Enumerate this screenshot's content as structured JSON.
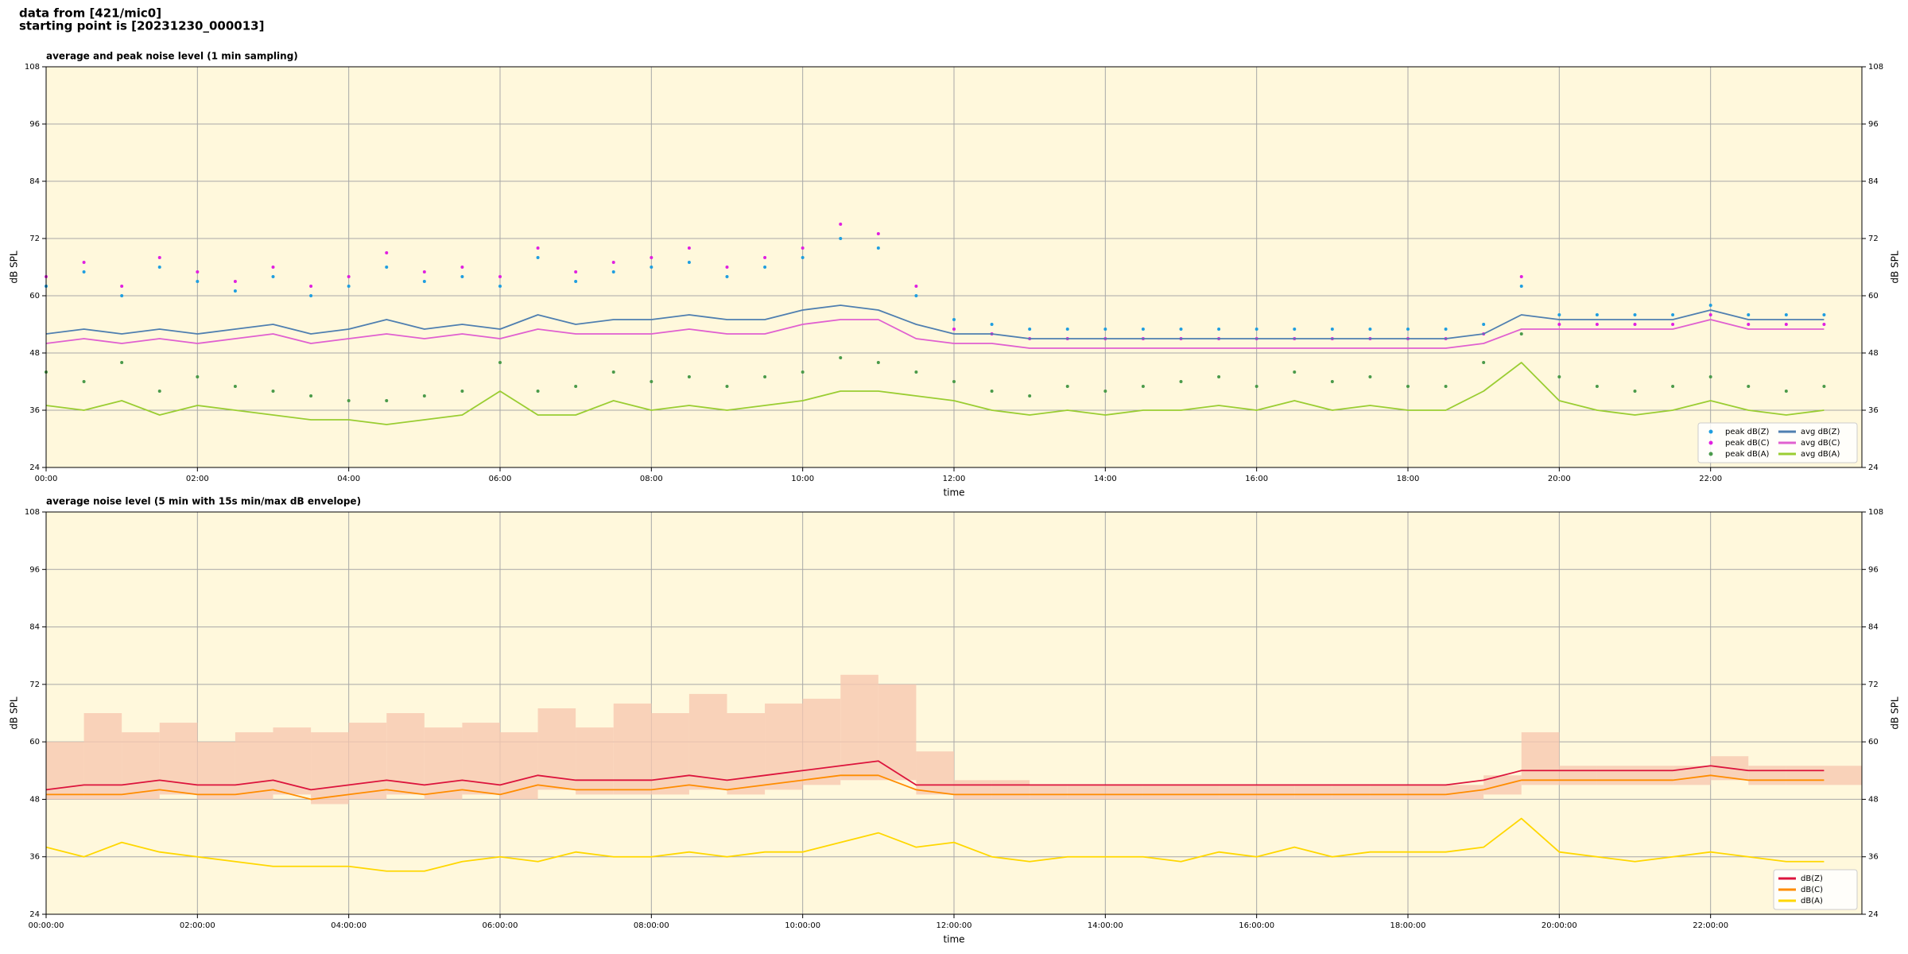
{
  "header": {
    "line1": "data from [421/mic0]",
    "line2": "starting point is [20231230_000013]"
  },
  "chart_data": [
    {
      "type": "line",
      "title": "average and peak noise level (1 min sampling)",
      "xlabel": "time",
      "ylabel": "dB SPL",
      "y2label": "dB SPL",
      "xlim": [
        0,
        24
      ],
      "ylim": [
        24,
        108
      ],
      "grid": true,
      "legend": "lower right",
      "background": "#fff8dc",
      "legend_columns": 2,
      "xticks": [
        {
          "value": 0,
          "label": "00:00"
        },
        {
          "value": 2,
          "label": "02:00"
        },
        {
          "value": 4,
          "label": "04:00"
        },
        {
          "value": 6,
          "label": "06:00"
        },
        {
          "value": 8,
          "label": "08:00"
        },
        {
          "value": 10,
          "label": "10:00"
        },
        {
          "value": 12,
          "label": "12:00"
        },
        {
          "value": 14,
          "label": "14:00"
        },
        {
          "value": 16,
          "label": "16:00"
        },
        {
          "value": 18,
          "label": "18:00"
        },
        {
          "value": 20,
          "label": "20:00"
        },
        {
          "value": 22,
          "label": "22:00"
        }
      ],
      "yticks": [
        24,
        36,
        48,
        60,
        72,
        84,
        96,
        108
      ],
      "x": [
        0,
        0.5,
        1,
        1.5,
        2,
        2.5,
        3,
        3.5,
        4,
        4.5,
        5,
        5.5,
        6,
        6.5,
        7,
        7.5,
        8,
        8.5,
        9,
        9.5,
        10,
        10.5,
        11,
        11.5,
        12,
        12.5,
        13,
        13.5,
        14,
        14.5,
        15,
        15.5,
        16,
        16.5,
        17,
        17.5,
        18,
        18.5,
        19,
        19.5,
        20,
        20.5,
        21,
        21.5,
        22,
        22.5,
        23,
        23.5
      ],
      "series": [
        {
          "name": "peak dB(Z)",
          "kind": "scatter",
          "color": "#1f9ee0",
          "values": [
            62,
            65,
            60,
            66,
            63,
            61,
            64,
            60,
            62,
            66,
            63,
            64,
            62,
            68,
            63,
            65,
            66,
            67,
            64,
            66,
            68,
            72,
            70,
            60,
            55,
            54,
            53,
            53,
            53,
            53,
            53,
            53,
            53,
            53,
            53,
            53,
            53,
            53,
            54,
            62,
            56,
            56,
            56,
            56,
            58,
            56,
            56,
            56
          ]
        },
        {
          "name": "peak dB(C)",
          "kind": "scatter",
          "color": "#e020e0",
          "values": [
            64,
            67,
            62,
            68,
            65,
            63,
            66,
            62,
            64,
            69,
            65,
            66,
            64,
            70,
            65,
            67,
            68,
            70,
            66,
            68,
            70,
            75,
            73,
            62,
            53,
            52,
            51,
            51,
            51,
            51,
            51,
            51,
            51,
            51,
            51,
            51,
            51,
            51,
            52,
            64,
            54,
            54,
            54,
            54,
            56,
            54,
            54,
            54
          ]
        },
        {
          "name": "peak dB(A)",
          "kind": "scatter",
          "color": "#4a9a4a",
          "values": [
            44,
            42,
            46,
            40,
            43,
            41,
            40,
            39,
            38,
            38,
            39,
            40,
            46,
            40,
            41,
            44,
            42,
            43,
            41,
            43,
            44,
            47,
            46,
            44,
            42,
            40,
            39,
            41,
            40,
            41,
            42,
            43,
            41,
            44,
            42,
            43,
            41,
            41,
            46,
            52,
            43,
            41,
            40,
            41,
            43,
            41,
            40,
            41
          ]
        },
        {
          "name": "avg dB(Z)",
          "kind": "line",
          "color": "#4f7fb0",
          "values": [
            52,
            53,
            52,
            53,
            52,
            53,
            54,
            52,
            53,
            55,
            53,
            54,
            53,
            56,
            54,
            55,
            55,
            56,
            55,
            55,
            57,
            58,
            57,
            54,
            52,
            52,
            51,
            51,
            51,
            51,
            51,
            51,
            51,
            51,
            51,
            51,
            51,
            51,
            52,
            56,
            55,
            55,
            55,
            55,
            57,
            55,
            55,
            55
          ]
        },
        {
          "name": "avg dB(C)",
          "kind": "line",
          "color": "#e060d0",
          "values": [
            50,
            51,
            50,
            51,
            50,
            51,
            52,
            50,
            51,
            52,
            51,
            52,
            51,
            53,
            52,
            52,
            52,
            53,
            52,
            52,
            54,
            55,
            55,
            51,
            50,
            50,
            49,
            49,
            49,
            49,
            49,
            49,
            49,
            49,
            49,
            49,
            49,
            49,
            50,
            53,
            53,
            53,
            53,
            53,
            55,
            53,
            53,
            53
          ]
        },
        {
          "name": "avg dB(A)",
          "kind": "line",
          "color": "#9acd32",
          "values": [
            37,
            36,
            38,
            35,
            37,
            36,
            35,
            34,
            34,
            33,
            34,
            35,
            40,
            35,
            35,
            38,
            36,
            37,
            36,
            37,
            38,
            40,
            40,
            39,
            38,
            36,
            35,
            36,
            35,
            36,
            36,
            37,
            36,
            38,
            36,
            37,
            36,
            36,
            40,
            46,
            38,
            36,
            35,
            36,
            38,
            36,
            35,
            36
          ]
        }
      ]
    },
    {
      "type": "line",
      "title": "average noise level (5 min with 15s min/max dB envelope)",
      "xlabel": "time",
      "ylabel": "dB SPL",
      "y2label": "dB SPL",
      "xlim": [
        0,
        24
      ],
      "ylim": [
        24,
        108
      ],
      "grid": true,
      "legend": "lower right",
      "background": "#fff8dc",
      "legend_columns": 1,
      "xticks": [
        {
          "value": 0,
          "label": "00:00:00"
        },
        {
          "value": 2,
          "label": "02:00:00"
        },
        {
          "value": 4,
          "label": "04:00:00"
        },
        {
          "value": 6,
          "label": "06:00:00"
        },
        {
          "value": 8,
          "label": "08:00:00"
        },
        {
          "value": 10,
          "label": "10:00:00"
        },
        {
          "value": 12,
          "label": "12:00:00"
        },
        {
          "value": 14,
          "label": "14:00:00"
        },
        {
          "value": 16,
          "label": "16:00:00"
        },
        {
          "value": 18,
          "label": "18:00:00"
        },
        {
          "value": 20,
          "label": "20:00:00"
        },
        {
          "value": 22,
          "label": "22:00:00"
        }
      ],
      "yticks": [
        24,
        36,
        48,
        60,
        72,
        84,
        96,
        108
      ],
      "x": [
        0,
        0.5,
        1,
        1.5,
        2,
        2.5,
        3,
        3.5,
        4,
        4.5,
        5,
        5.5,
        6,
        6.5,
        7,
        7.5,
        8,
        8.5,
        9,
        9.5,
        10,
        10.5,
        11,
        11.5,
        12,
        12.5,
        13,
        13.5,
        14,
        14.5,
        15,
        15.5,
        16,
        16.5,
        17,
        17.5,
        18,
        18.5,
        19,
        19.5,
        20,
        20.5,
        21,
        21.5,
        22,
        22.5,
        23,
        23.5
      ],
      "envelope": {
        "color": "#f7c8b0",
        "high": [
          60,
          66,
          62,
          64,
          60,
          62,
          63,
          62,
          64,
          66,
          63,
          64,
          62,
          67,
          63,
          68,
          66,
          70,
          66,
          68,
          69,
          74,
          72,
          58,
          52,
          52,
          51,
          51,
          51,
          51,
          51,
          51,
          51,
          51,
          51,
          51,
          51,
          51,
          53,
          62,
          55,
          55,
          55,
          55,
          57,
          55,
          55,
          55
        ],
        "low": [
          48,
          48,
          48,
          49,
          48,
          48,
          49,
          47,
          48,
          49,
          48,
          49,
          48,
          50,
          49,
          49,
          49,
          50,
          49,
          50,
          51,
          52,
          52,
          49,
          48,
          48,
          48,
          48,
          48,
          48,
          48,
          48,
          48,
          48,
          48,
          48,
          48,
          48,
          49,
          51,
          51,
          51,
          51,
          51,
          52,
          51,
          51,
          51
        ]
      },
      "series": [
        {
          "name": "dB(Z)",
          "kind": "line",
          "color": "#dc143c",
          "values": [
            50,
            51,
            51,
            52,
            51,
            51,
            52,
            50,
            51,
            52,
            51,
            52,
            51,
            53,
            52,
            52,
            52,
            53,
            52,
            53,
            54,
            55,
            56,
            51,
            51,
            51,
            51,
            51,
            51,
            51,
            51,
            51,
            51,
            51,
            51,
            51,
            51,
            51,
            52,
            54,
            54,
            54,
            54,
            54,
            55,
            54,
            54,
            54
          ]
        },
        {
          "name": "dB(C)",
          "kind": "line",
          "color": "#ff8c00",
          "values": [
            49,
            49,
            49,
            50,
            49,
            49,
            50,
            48,
            49,
            50,
            49,
            50,
            49,
            51,
            50,
            50,
            50,
            51,
            50,
            51,
            52,
            53,
            53,
            50,
            49,
            49,
            49,
            49,
            49,
            49,
            49,
            49,
            49,
            49,
            49,
            49,
            49,
            49,
            50,
            52,
            52,
            52,
            52,
            52,
            53,
            52,
            52,
            52
          ]
        },
        {
          "name": "dB(A)",
          "kind": "line",
          "color": "#ffd700",
          "values": [
            38,
            36,
            39,
            37,
            36,
            35,
            34,
            34,
            34,
            33,
            33,
            35,
            36,
            35,
            37,
            36,
            36,
            37,
            36,
            37,
            37,
            39,
            41,
            38,
            39,
            36,
            35,
            36,
            36,
            36,
            35,
            37,
            36,
            38,
            36,
            37,
            37,
            37,
            38,
            44,
            37,
            36,
            35,
            36,
            37,
            36,
            35,
            35
          ]
        }
      ]
    }
  ]
}
